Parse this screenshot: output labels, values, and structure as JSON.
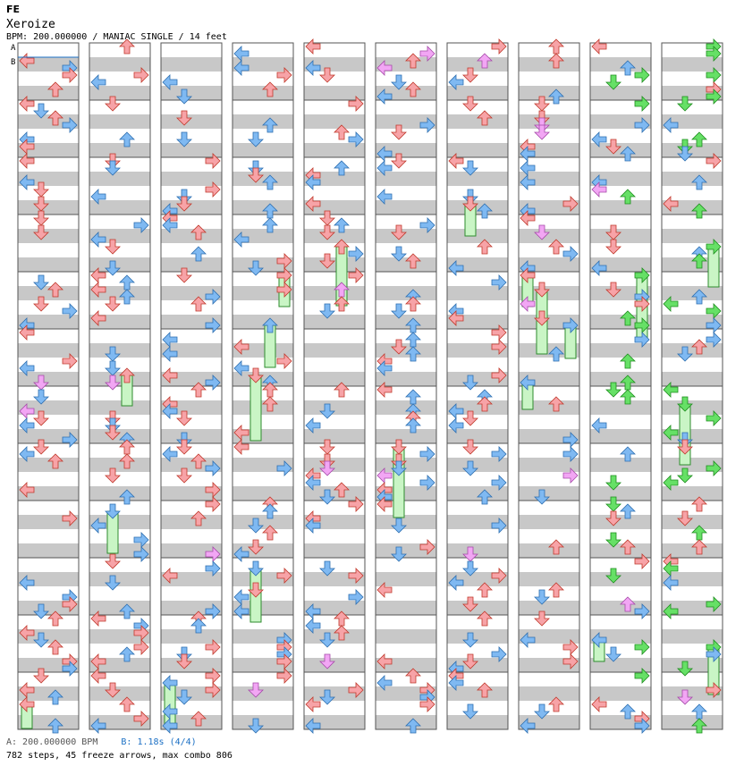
{
  "header": {
    "game": "FE",
    "title": "Xeroize",
    "info": "BPM: 200.000000 / MANIAC SINGLE / 14 feet"
  },
  "markers": {
    "a": "A",
    "b": "B"
  },
  "footer": {
    "bpm_a": "A: 200.000000 BPM",
    "bpm_b": "B: 1.18s (4/4)",
    "stats": "782 steps, 45 freeze arrows, max combo 806"
  },
  "colors": {
    "quarter": "#f7a3a7",
    "eighth": "#7fb9f2",
    "sixteenth": "#f2a6f4",
    "twentyfourth": "#66e066",
    "freeze": "#c9f5c5",
    "stripe": "#c8c8c8"
  },
  "chart_data": {
    "type": "step-chart",
    "columns": 10,
    "measures_per_column": 12,
    "freeze_arrows": 45,
    "steps": 782,
    "max_combo": 806
  }
}
